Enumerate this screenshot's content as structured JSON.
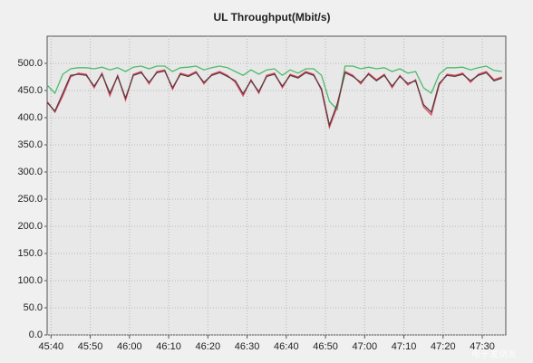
{
  "chart_data": {
    "type": "line",
    "title": "UL Throughput(Mbit/s)",
    "x": [
      2739,
      2741,
      2743,
      2745,
      2747,
      2749,
      2751,
      2753,
      2755,
      2757,
      2759,
      2761,
      2763,
      2765,
      2767,
      2769,
      2771,
      2773,
      2775,
      2777,
      2779,
      2781,
      2783,
      2785,
      2787,
      2789,
      2791,
      2793,
      2795,
      2797,
      2799,
      2801,
      2803,
      2805,
      2807,
      2809,
      2811,
      2813,
      2815,
      2817,
      2819,
      2821,
      2823,
      2825,
      2827,
      2829,
      2831,
      2833,
      2835,
      2837,
      2839,
      2841,
      2843,
      2845,
      2847,
      2849,
      2851,
      2853,
      2855
    ],
    "series": [
      {
        "color": "#4cbb6a",
        "values": [
          460,
          445,
          480,
          490,
          492,
          492,
          490,
          493,
          488,
          492,
          485,
          493,
          495,
          490,
          495,
          495,
          485,
          492,
          493,
          495,
          488,
          492,
          495,
          492,
          485,
          478,
          488,
          480,
          488,
          490,
          478,
          488,
          482,
          490,
          490,
          478,
          430,
          415,
          495,
          495,
          490,
          493,
          490,
          492,
          485,
          490,
          482,
          485,
          455,
          445,
          480,
          492,
          492,
          493,
          488,
          492,
          495,
          487,
          485
        ]
      },
      {
        "color": "#e0506a",
        "values": [
          430,
          410,
          440,
          475,
          482,
          480,
          455,
          482,
          440,
          478,
          432,
          480,
          485,
          462,
          485,
          488,
          452,
          482,
          478,
          485,
          462,
          480,
          485,
          478,
          465,
          440,
          470,
          445,
          478,
          482,
          455,
          480,
          475,
          485,
          480,
          450,
          382,
          420,
          485,
          478,
          462,
          482,
          470,
          480,
          455,
          478,
          460,
          470,
          420,
          405,
          460,
          480,
          478,
          482,
          465,
          480,
          485,
          470,
          475
        ]
      },
      {
        "color": "#5a3a3a",
        "values": [
          428,
          412,
          445,
          478,
          480,
          478,
          458,
          480,
          445,
          476,
          436,
          478,
          483,
          465,
          483,
          486,
          455,
          480,
          476,
          483,
          465,
          478,
          483,
          476,
          468,
          444,
          468,
          448,
          476,
          480,
          458,
          478,
          473,
          483,
          478,
          453,
          386,
          425,
          483,
          476,
          465,
          480,
          468,
          478,
          458,
          476,
          463,
          468,
          424,
          410,
          463,
          478,
          476,
          480,
          468,
          478,
          483,
          468,
          473
        ]
      }
    ],
    "xlim": [
      2739,
      2856
    ],
    "xticks": [
      {
        "value": 2740,
        "label": "45:40"
      },
      {
        "value": 2750,
        "label": "45:50"
      },
      {
        "value": 2760,
        "label": "46:00"
      },
      {
        "value": 2770,
        "label": "46:10"
      },
      {
        "value": 2780,
        "label": "46:20"
      },
      {
        "value": 2790,
        "label": "46:30"
      },
      {
        "value": 2800,
        "label": "46:40"
      },
      {
        "value": 2810,
        "label": "46:50"
      },
      {
        "value": 2820,
        "label": "47:00"
      },
      {
        "value": 2830,
        "label": "47:10"
      },
      {
        "value": 2840,
        "label": "47:20"
      },
      {
        "value": 2850,
        "label": "47:30"
      }
    ],
    "ylim": [
      0,
      550
    ],
    "yticks": [
      {
        "value": 0,
        "label": "0.0"
      },
      {
        "value": 50,
        "label": "50.0"
      },
      {
        "value": 100,
        "label": "100.0"
      },
      {
        "value": 150,
        "label": "150.0"
      },
      {
        "value": 200,
        "label": "200.0"
      },
      {
        "value": 250,
        "label": "250.0"
      },
      {
        "value": 300,
        "label": "300.0"
      },
      {
        "value": 350,
        "label": "350.0"
      },
      {
        "value": 400,
        "label": "400.0"
      },
      {
        "value": 450,
        "label": "450.0"
      },
      {
        "value": 500,
        "label": "500.0"
      }
    ],
    "grid": true,
    "watermark": "电子发烧友"
  }
}
